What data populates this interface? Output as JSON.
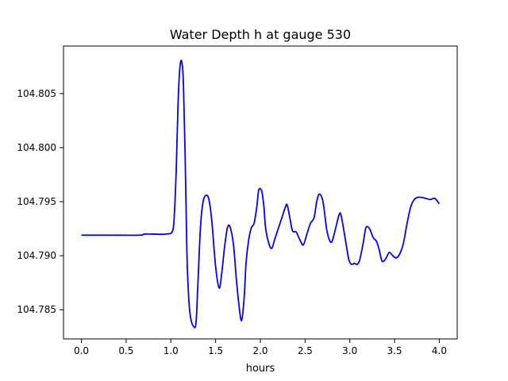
{
  "chart_data": {
    "type": "line",
    "title": "Water Depth h at gauge 530",
    "xlabel": "hours",
    "ylabel": "",
    "xlim": [
      -0.2,
      4.2
    ],
    "ylim": [
      104.7823,
      104.8094
    ],
    "xticks": [
      0.0,
      0.5,
      1.0,
      1.5,
      2.0,
      2.5,
      3.0,
      3.5,
      4.0
    ],
    "xtick_labels": [
      "0.0",
      "0.5",
      "1.0",
      "1.5",
      "2.0",
      "2.5",
      "3.0",
      "3.5",
      "4.0"
    ],
    "yticks": [
      104.785,
      104.79,
      104.795,
      104.8,
      104.805
    ],
    "ytick_labels": [
      "104.785",
      "104.790",
      "104.795",
      "104.800",
      "104.805"
    ],
    "grid": false,
    "series": [
      {
        "color": "#0000ff",
        "x": [
          0.0,
          0.3,
          0.65,
          0.7,
          0.8,
          0.95,
          1.02,
          1.04,
          1.06,
          1.08,
          1.1,
          1.12,
          1.14,
          1.16,
          1.18,
          1.2,
          1.22,
          1.25,
          1.28,
          1.3,
          1.33,
          1.36,
          1.4,
          1.43,
          1.46,
          1.5,
          1.54,
          1.57,
          1.6,
          1.63,
          1.66,
          1.7,
          1.73,
          1.76,
          1.79,
          1.82,
          1.84,
          1.87,
          1.9,
          1.93,
          1.96,
          1.98,
          2.0,
          2.02,
          2.04,
          2.06,
          2.1,
          2.13,
          2.16,
          2.2,
          2.24,
          2.28,
          2.3,
          2.33,
          2.36,
          2.4,
          2.44,
          2.48,
          2.52,
          2.56,
          2.6,
          2.63,
          2.66,
          2.7,
          2.74,
          2.77,
          2.8,
          2.84,
          2.88,
          2.9,
          2.93,
          2.96,
          2.99,
          3.02,
          3.05,
          3.08,
          3.11,
          3.15,
          3.18,
          3.22,
          3.26,
          3.3,
          3.33,
          3.36,
          3.4,
          3.44,
          3.48,
          3.52,
          3.56,
          3.6,
          3.64,
          3.68,
          3.72,
          3.76,
          3.8,
          3.85,
          3.9,
          3.95,
          4.0
        ],
        "y": [
          104.7919,
          104.7919,
          104.7919,
          104.792,
          104.792,
          104.792,
          104.7923,
          104.794,
          104.798,
          104.804,
          104.8073,
          104.808,
          104.806,
          104.799,
          104.79,
          104.786,
          104.7843,
          104.7835,
          104.7837,
          104.787,
          104.7925,
          104.795,
          104.7956,
          104.795,
          104.793,
          104.789,
          104.787,
          104.7885,
          104.7908,
          104.7925,
          104.7927,
          104.791,
          104.788,
          104.7855,
          104.784,
          104.7862,
          104.7893,
          104.7915,
          104.7926,
          104.793,
          104.7945,
          104.796,
          104.7962,
          104.7958,
          104.7945,
          104.7925,
          104.791,
          104.7907,
          104.7915,
          104.7925,
          104.7935,
          104.7945,
          104.7947,
          104.7935,
          104.7923,
          104.7922,
          104.7915,
          104.791,
          104.792,
          104.793,
          104.7935,
          104.795,
          104.7957,
          104.795,
          104.7925,
          104.7915,
          104.7913,
          104.7925,
          104.7938,
          104.7938,
          104.7925,
          104.791,
          104.7896,
          104.7892,
          104.7893,
          104.7892,
          104.7896,
          104.7912,
          104.7926,
          104.7925,
          104.7917,
          104.7913,
          104.7905,
          104.7895,
          104.7897,
          104.7903,
          104.79,
          104.7898,
          104.7902,
          104.7912,
          104.793,
          104.7945,
          104.7952,
          104.7954,
          104.7954,
          104.7953,
          104.7952,
          104.7953,
          104.7948
        ]
      }
    ]
  }
}
